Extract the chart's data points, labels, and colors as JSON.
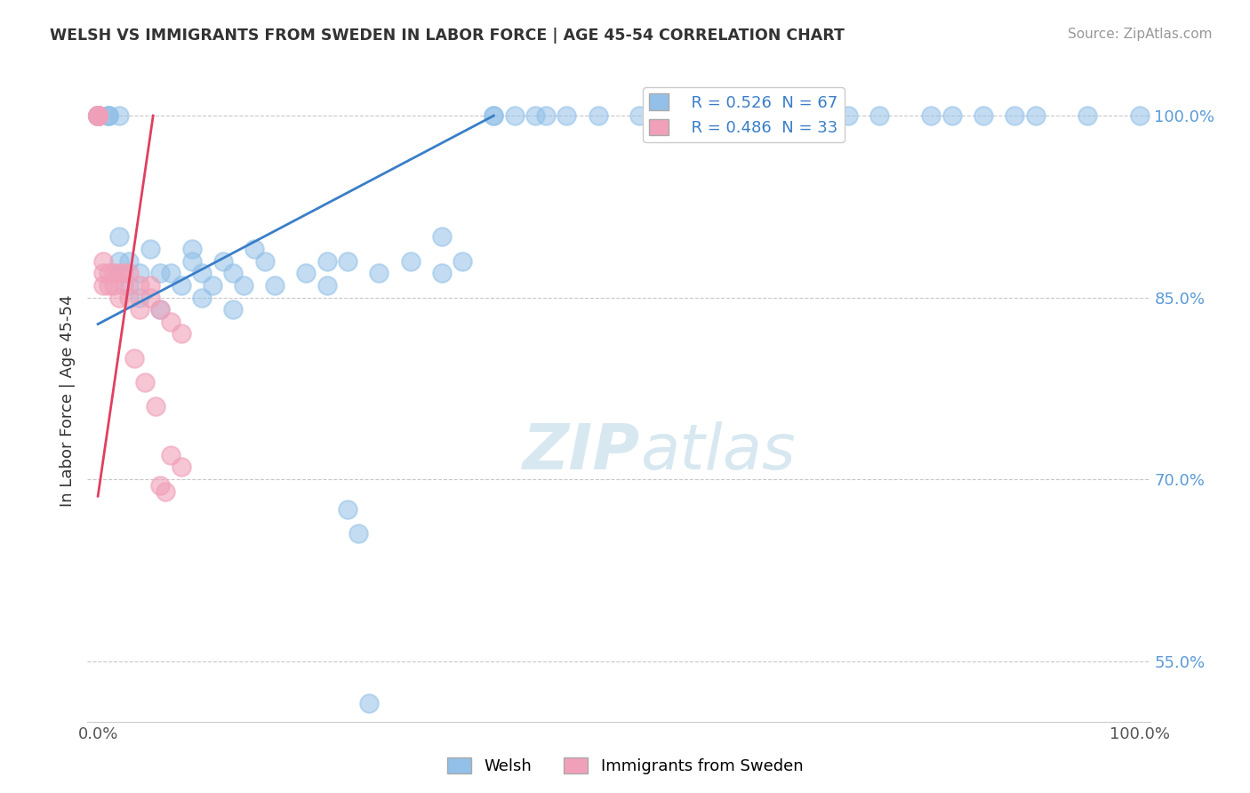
{
  "title": "WELSH VS IMMIGRANTS FROM SWEDEN IN LABOR FORCE | AGE 45-54 CORRELATION CHART",
  "source": "Source: ZipAtlas.com",
  "ylabel": "In Labor Force | Age 45-54",
  "xlim": [
    0.0,
    1.0
  ],
  "ylim": [
    0.5,
    1.03
  ],
  "yticks": [
    0.55,
    0.7,
    0.85,
    1.0
  ],
  "ytick_labels": [
    "55.0%",
    "70.0%",
    "85.0%",
    "100.0%"
  ],
  "xticks": [
    0.0,
    1.0
  ],
  "xtick_labels": [
    "0.0%",
    "100.0%"
  ],
  "legend_r_blue": "R = 0.526  N = 67",
  "legend_r_pink": "R = 0.486  N = 33",
  "legend_label_blue": "Welsh",
  "legend_label_pink": "Immigrants from Sweden",
  "blue_color": "#92C0E8",
  "pink_color": "#F0A0B8",
  "blue_line_color": "#3A7EC8",
  "pink_line_color": "#E04060",
  "background_color": "#FFFFFF",
  "watermark_color": "#D8E8F0",
  "blue_line_x": [
    0.0,
    0.38
  ],
  "blue_line_y": [
    0.828,
    1.0
  ],
  "pink_line_x": [
    0.0,
    0.053
  ],
  "pink_line_y": [
    0.686,
    1.0
  ],
  "blue_x": [
    0.0,
    0.0,
    0.0,
    0.0,
    0.0,
    0.0,
    0.01,
    0.01,
    0.01,
    0.02,
    0.02,
    0.02,
    0.03,
    0.03,
    0.04,
    0.04,
    0.05,
    0.06,
    0.06,
    0.07,
    0.08,
    0.09,
    0.09,
    0.1,
    0.1,
    0.11,
    0.12,
    0.13,
    0.13,
    0.14,
    0.15,
    0.16,
    0.17,
    0.2,
    0.22,
    0.22,
    0.24,
    0.27,
    0.3,
    0.33,
    0.33,
    0.35,
    0.38,
    0.38,
    0.4,
    0.42,
    0.43,
    0.45,
    0.48,
    0.52,
    0.55,
    0.58,
    0.6,
    0.65,
    0.68,
    0.72,
    0.75,
    0.8,
    0.82,
    0.85,
    0.88,
    0.9,
    0.95,
    1.0,
    0.24,
    0.25,
    0.26
  ],
  "blue_y": [
    1.0,
    1.0,
    1.0,
    1.0,
    1.0,
    1.0,
    1.0,
    1.0,
    1.0,
    1.0,
    0.88,
    0.9,
    0.88,
    0.86,
    0.87,
    0.85,
    0.89,
    0.87,
    0.84,
    0.87,
    0.86,
    0.89,
    0.88,
    0.87,
    0.85,
    0.86,
    0.88,
    0.87,
    0.84,
    0.86,
    0.89,
    0.88,
    0.86,
    0.87,
    0.88,
    0.86,
    0.88,
    0.87,
    0.88,
    0.9,
    0.87,
    0.88,
    1.0,
    1.0,
    1.0,
    1.0,
    1.0,
    1.0,
    1.0,
    1.0,
    1.0,
    1.0,
    1.0,
    1.0,
    1.0,
    1.0,
    1.0,
    1.0,
    1.0,
    1.0,
    1.0,
    1.0,
    1.0,
    1.0,
    0.675,
    0.655,
    0.515
  ],
  "pink_x": [
    0.0,
    0.0,
    0.0,
    0.0,
    0.0,
    0.0,
    0.005,
    0.005,
    0.005,
    0.01,
    0.01,
    0.015,
    0.015,
    0.02,
    0.02,
    0.025,
    0.025,
    0.03,
    0.03,
    0.04,
    0.04,
    0.05,
    0.05,
    0.06,
    0.07,
    0.08,
    0.035,
    0.045,
    0.055,
    0.06,
    0.065,
    0.07,
    0.08
  ],
  "pink_y": [
    1.0,
    1.0,
    1.0,
    1.0,
    1.0,
    1.0,
    0.88,
    0.87,
    0.86,
    0.87,
    0.86,
    0.87,
    0.86,
    0.87,
    0.85,
    0.87,
    0.86,
    0.87,
    0.85,
    0.86,
    0.84,
    0.86,
    0.85,
    0.84,
    0.83,
    0.82,
    0.8,
    0.78,
    0.76,
    0.695,
    0.69,
    0.72,
    0.71
  ]
}
